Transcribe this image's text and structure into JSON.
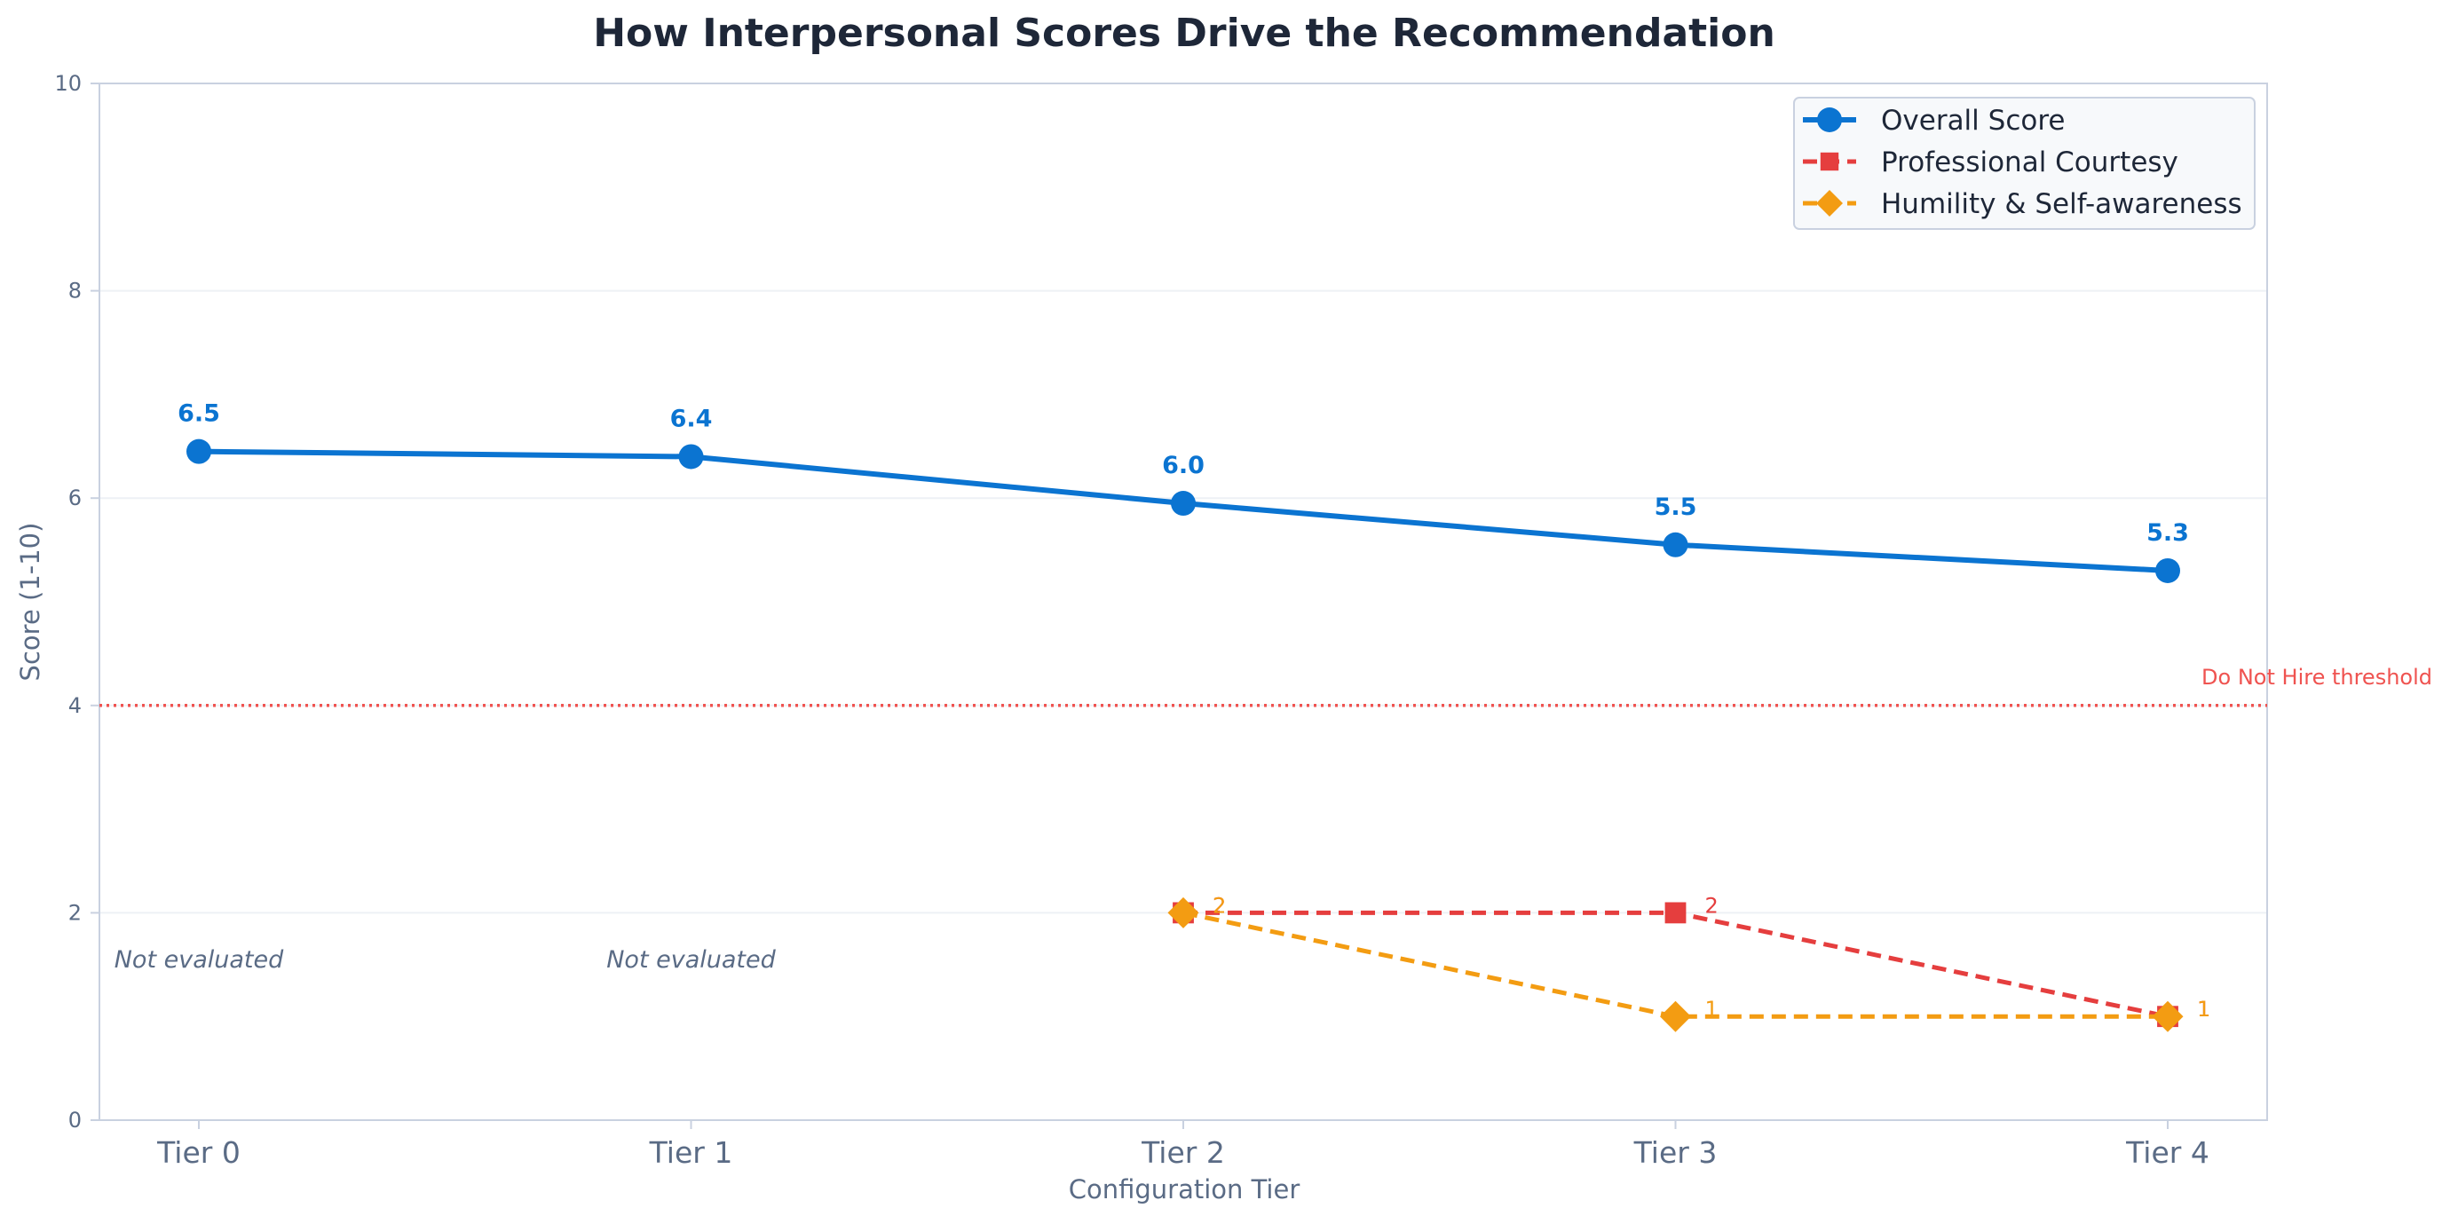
{
  "chart_data": {
    "type": "line",
    "title": "How Interpersonal Scores Drive the Recommendation",
    "xlabel": "Configuration Tier",
    "ylabel": "Score (1-10)",
    "categories": [
      "Tier 0",
      "Tier 1",
      "Tier 2",
      "Tier 3",
      "Tier 4"
    ],
    "ylim": [
      0,
      10
    ],
    "yticks": [
      "0",
      "2",
      "4",
      "6",
      "8",
      "10"
    ],
    "grid": true,
    "legend_position": "top-right",
    "series": [
      {
        "name": "Overall Score",
        "values": [
          6.45,
          6.4,
          5.95,
          5.55,
          5.3
        ],
        "labels": [
          "6.5",
          "6.4",
          "6.0",
          "5.5",
          "5.3"
        ],
        "color": "#0b74d1",
        "marker": "circle",
        "style": "solid"
      },
      {
        "name": "Professional Courtesy",
        "values": [
          null,
          null,
          2,
          2,
          1
        ],
        "labels": [
          "",
          "",
          "2",
          "2",
          "1"
        ],
        "color": "#e53e3e",
        "marker": "square",
        "style": "dashed"
      },
      {
        "name": "Humility & Self-awareness",
        "values": [
          null,
          null,
          2,
          1,
          1
        ],
        "labels": [
          "",
          "",
          "2",
          "1",
          "1"
        ],
        "color": "#f39c12",
        "marker": "diamond",
        "style": "dashed"
      }
    ],
    "threshold": {
      "value": 4,
      "label": "Do Not Hire threshold",
      "color": "#ef5350"
    },
    "annotations": [
      {
        "category": "Tier 0",
        "text": "Not evaluated"
      },
      {
        "category": "Tier 1",
        "text": "Not evaluated"
      }
    ]
  }
}
